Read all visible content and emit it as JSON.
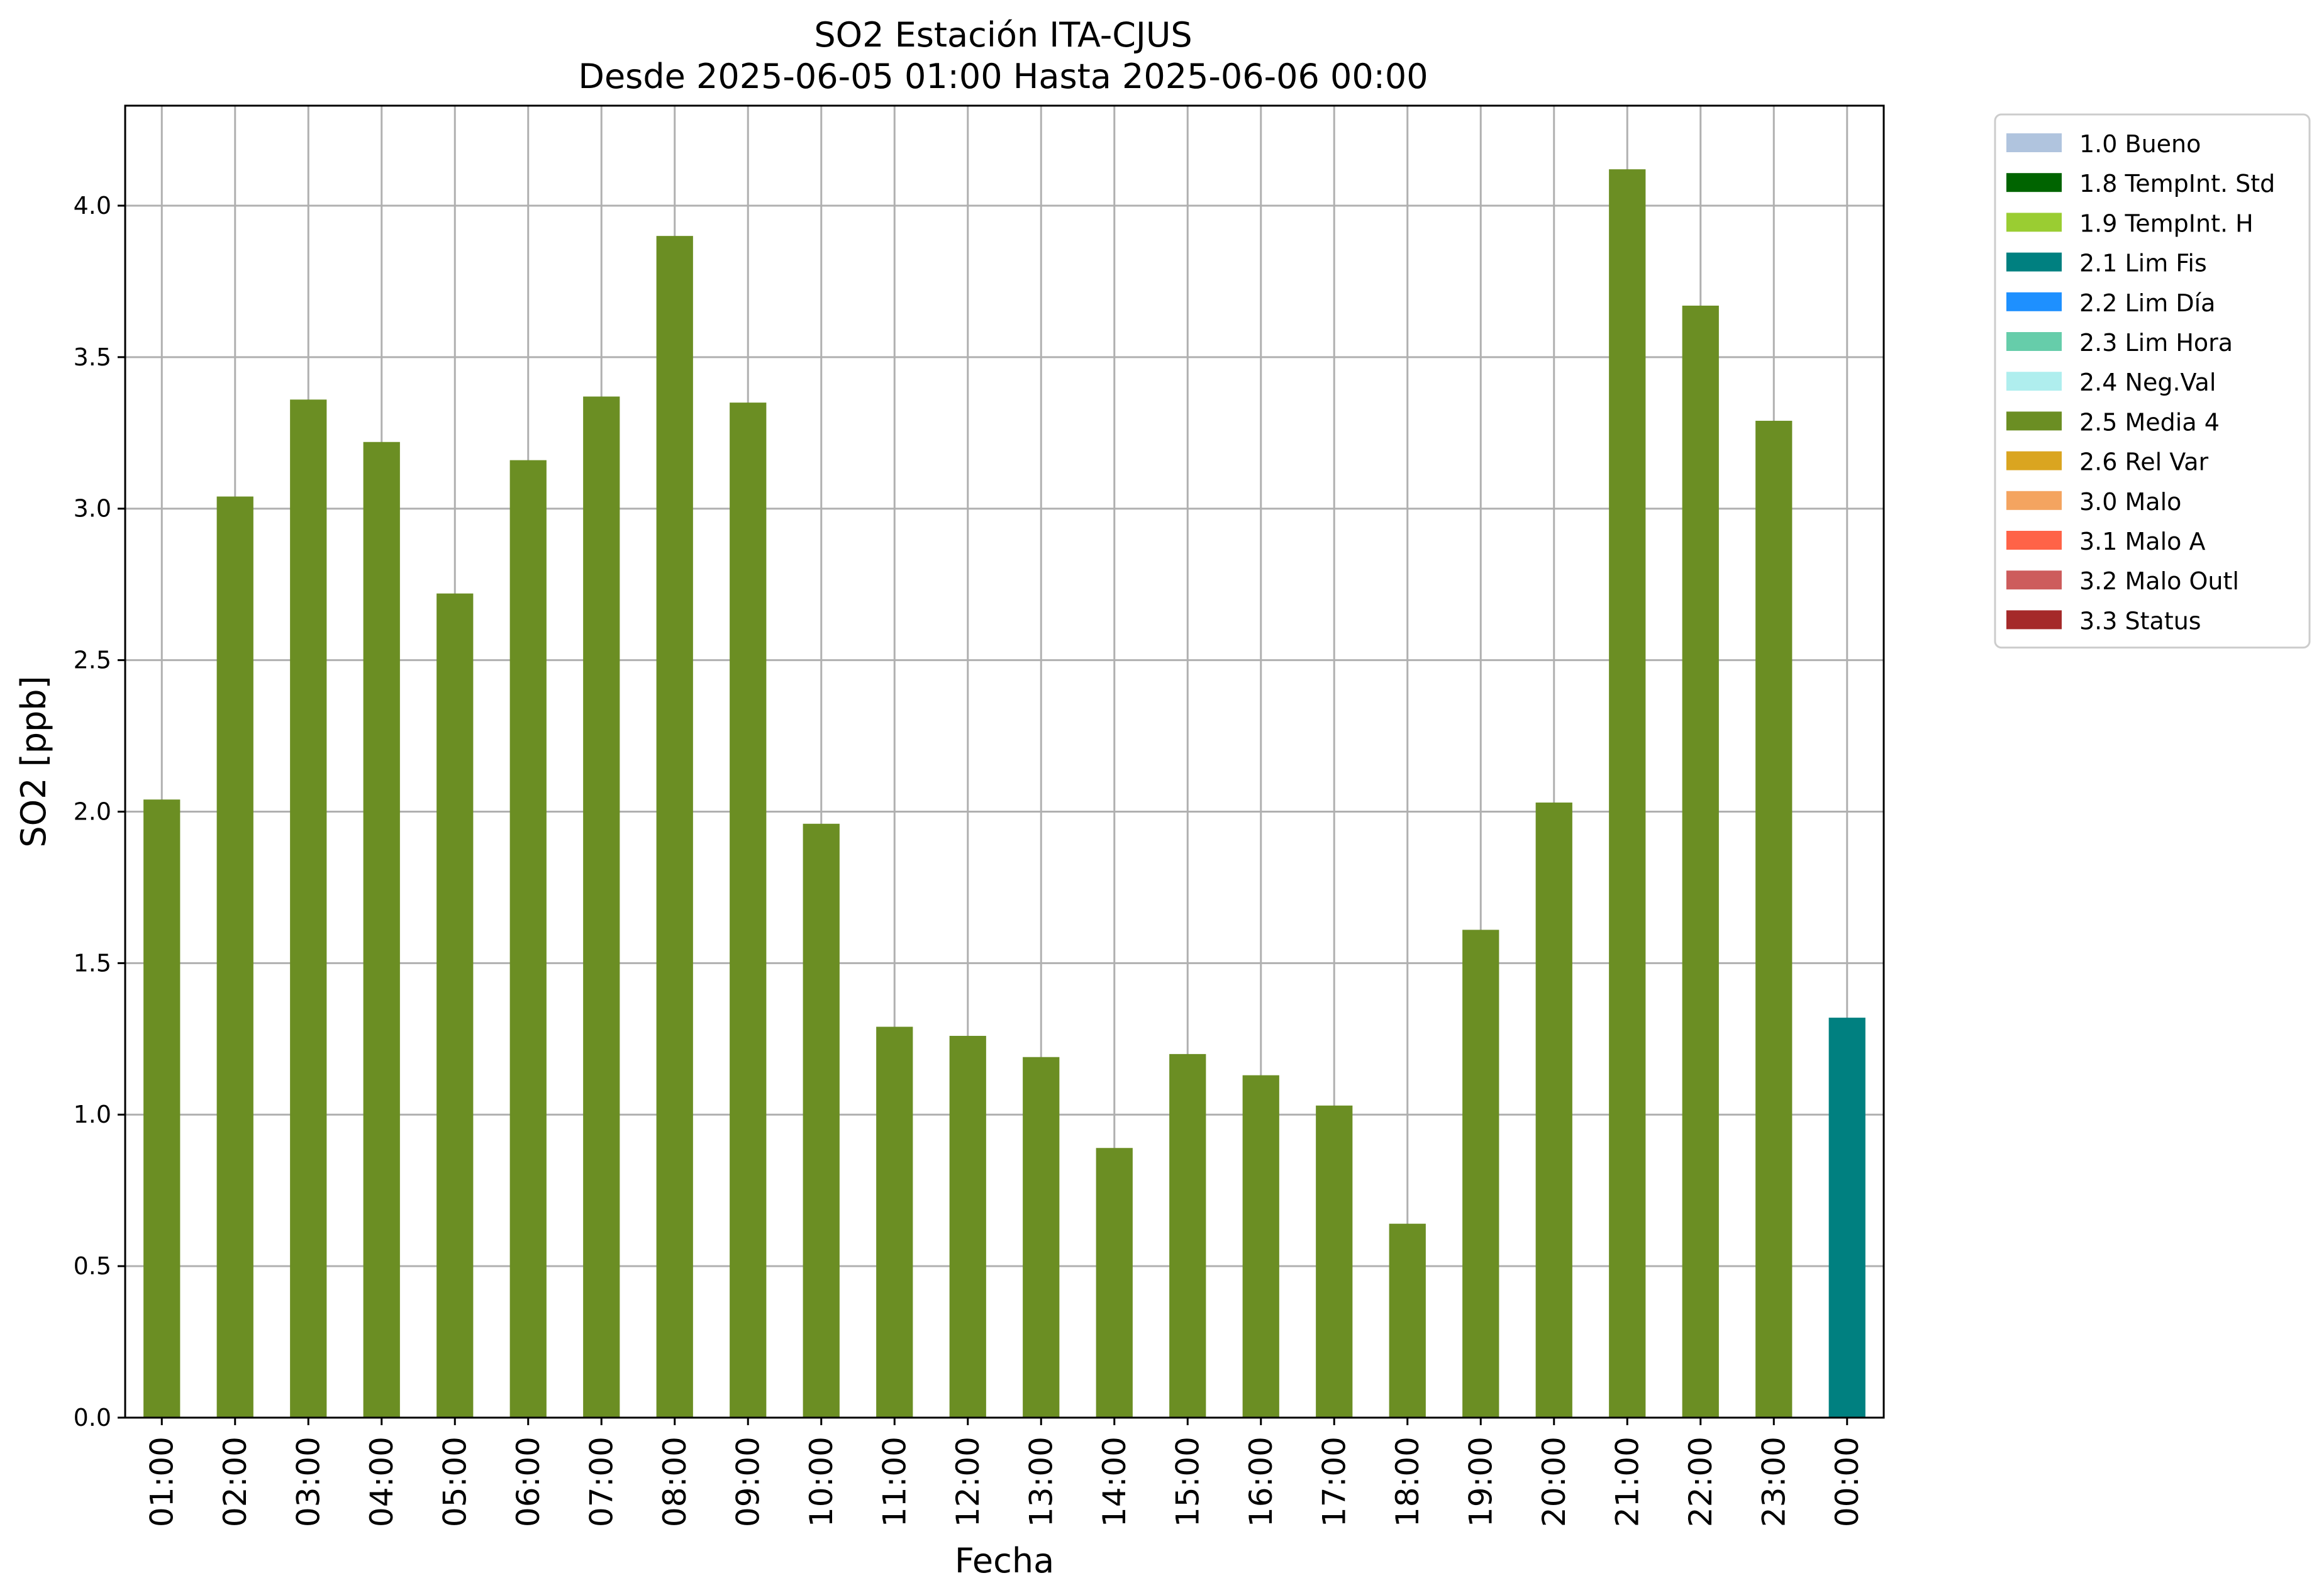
{
  "chart_data": {
    "type": "bar",
    "title": "SO2 Estación ITA-CJUS",
    "subtitle": "Desde 2025-06-05 01:00 Hasta 2025-06-06 00:00",
    "xlabel": "Fecha",
    "ylabel": "SO2 [ppb]",
    "ylim": [
      0,
      4.33
    ],
    "yticks": [
      "0.0",
      "0.5",
      "1.0",
      "1.5",
      "2.0",
      "2.5",
      "3.0",
      "3.5",
      "4.0"
    ],
    "grid": true,
    "legend_position": "outside top-right",
    "categories": [
      "01:00",
      "02:00",
      "03:00",
      "04:00",
      "05:00",
      "06:00",
      "07:00",
      "08:00",
      "09:00",
      "10:00",
      "11:00",
      "12:00",
      "13:00",
      "14:00",
      "15:00",
      "16:00",
      "17:00",
      "18:00",
      "19:00",
      "20:00",
      "21:00",
      "22:00",
      "23:00",
      "00:00"
    ],
    "values": [
      2.04,
      3.04,
      3.36,
      3.22,
      2.72,
      3.16,
      3.37,
      3.9,
      3.35,
      1.96,
      1.29,
      1.26,
      1.19,
      0.89,
      1.2,
      1.13,
      1.03,
      0.64,
      1.61,
      2.03,
      4.12,
      3.67,
      3.29,
      1.32
    ],
    "flags": [
      "2.5 Media 4",
      "2.5 Media 4",
      "2.5 Media 4",
      "2.5 Media 4",
      "2.5 Media 4",
      "2.5 Media 4",
      "2.5 Media 4",
      "2.5 Media 4",
      "2.5 Media 4",
      "2.5 Media 4",
      "2.5 Media 4",
      "2.5 Media 4",
      "2.5 Media 4",
      "2.5 Media 4",
      "2.5 Media 4",
      "2.5 Media 4",
      "2.5 Media 4",
      "2.5 Media 4",
      "2.5 Media 4",
      "2.5 Media 4",
      "2.5 Media 4",
      "2.5 Media 4",
      "2.5 Media 4",
      "2.1 Lim Fis"
    ],
    "legend": [
      {
        "name": "1.0 Bueno",
        "color": "#b0c4de"
      },
      {
        "name": "1.8 TempInt. Std",
        "color": "#006400"
      },
      {
        "name": "1.9 TempInt. H",
        "color": "#9acd32"
      },
      {
        "name": "2.1 Lim Fis",
        "color": "#008080"
      },
      {
        "name": "2.2 Lim Día",
        "color": "#1e90ff"
      },
      {
        "name": "2.3 Lim Hora",
        "color": "#66cdaa"
      },
      {
        "name": "2.4 Neg.Val",
        "color": "#afeeee"
      },
      {
        "name": "2.5 Media 4",
        "color": "#6b8e23"
      },
      {
        "name": "2.6 Rel Var",
        "color": "#daa520"
      },
      {
        "name": "3.0 Malo",
        "color": "#f4a460"
      },
      {
        "name": "3.1 Malo A",
        "color": "#ff6347"
      },
      {
        "name": "3.2 Malo Outl",
        "color": "#cd5c5c"
      },
      {
        "name": "3.3 Status",
        "color": "#a52a2a"
      }
    ]
  }
}
